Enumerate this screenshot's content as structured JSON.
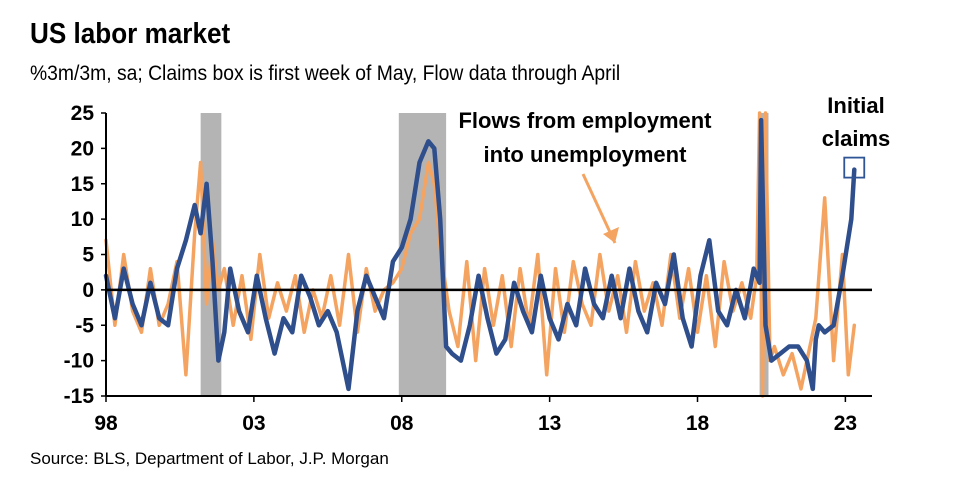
{
  "title": "US labor market",
  "subtitle": "%3m/3m, sa; Claims box is first week of May, Flow data through April",
  "source": "Source: BLS, Department of Labor, J.P. Morgan",
  "colors": {
    "claims": "#2F4E8C",
    "flows": "#F4A460",
    "recession": "#B4B4B4",
    "axis": "#000000",
    "box": "#2F5597"
  },
  "chart_data": {
    "type": "line",
    "title": "US labor market",
    "xlabel": "",
    "ylabel": "%3m/3m, sa",
    "xlim": [
      1998,
      2023.9
    ],
    "ylim": [
      -15,
      25
    ],
    "x_ticks": [
      1998,
      2003,
      2008,
      2013,
      2018,
      2023
    ],
    "x_tick_labels": [
      "98",
      "03",
      "08",
      "13",
      "18",
      "23"
    ],
    "y_ticks": [
      25,
      20,
      15,
      10,
      5,
      0,
      -5,
      -10,
      -15
    ],
    "y_tick_labels": [
      "25",
      "20",
      "15",
      "10",
      "5",
      "0",
      "-5",
      "-10",
      "-15"
    ],
    "recessions": [
      [
        2001.2,
        2001.9
      ],
      [
        2007.9,
        2009.5
      ],
      [
        2020.1,
        2020.4
      ]
    ],
    "annotations": {
      "flows_label_line1": "Flows from employment",
      "flows_label_line2": "into unemployment",
      "claims_label_line1": "Initial",
      "claims_label_line2": "claims"
    },
    "series": [
      {
        "name": "Initial claims",
        "x": [
          1998.0,
          1998.3,
          1998.6,
          1998.9,
          1999.2,
          1999.5,
          1999.8,
          2000.1,
          2000.4,
          2000.7,
          2001.0,
          2001.2,
          2001.4,
          2001.6,
          2001.8,
          2002.0,
          2002.2,
          2002.5,
          2002.8,
          2003.1,
          2003.4,
          2003.7,
          2004.0,
          2004.3,
          2004.6,
          2004.9,
          2005.2,
          2005.5,
          2005.8,
          2006.0,
          2006.2,
          2006.5,
          2006.8,
          2007.1,
          2007.4,
          2007.7,
          2008.0,
          2008.3,
          2008.6,
          2008.9,
          2009.1,
          2009.3,
          2009.5,
          2009.7,
          2010.0,
          2010.3,
          2010.6,
          2010.9,
          2011.2,
          2011.5,
          2011.8,
          2012.1,
          2012.4,
          2012.7,
          2013.0,
          2013.3,
          2013.6,
          2013.9,
          2014.2,
          2014.5,
          2014.8,
          2015.1,
          2015.4,
          2015.7,
          2016.0,
          2016.3,
          2016.6,
          2016.9,
          2017.2,
          2017.5,
          2017.8,
          2018.1,
          2018.4,
          2018.7,
          2019.0,
          2019.3,
          2019.6,
          2019.9,
          2020.1,
          2020.15,
          2020.3,
          2020.5,
          2020.8,
          2021.1,
          2021.4,
          2021.7,
          2021.9,
          2022.0,
          2022.1,
          2022.3,
          2022.6,
          2022.9,
          2023.2,
          2023.3
        ],
        "values": [
          2,
          -4,
          3,
          -2,
          -5,
          1,
          -4,
          -5,
          3,
          7,
          12,
          8,
          15,
          4,
          -10,
          -6,
          3,
          -3,
          -6,
          2,
          -4,
          -9,
          -4,
          -6,
          2,
          -1,
          -5,
          -3,
          -6,
          -10,
          -14,
          -3,
          2,
          -1,
          -4,
          4,
          6,
          10,
          18,
          21,
          20,
          10,
          -8,
          -9,
          -10,
          -5,
          2,
          -4,
          -9,
          -7,
          1,
          -3,
          -6,
          2,
          -4,
          -7,
          -2,
          -5,
          3,
          -2,
          -4,
          2,
          -4,
          3,
          -3,
          -6,
          1,
          -2,
          5,
          -4,
          -8,
          2,
          7,
          -3,
          -5,
          0,
          -4,
          3,
          1,
          24,
          -5,
          -10,
          -9,
          -8,
          -8,
          -10,
          -14,
          -7,
          -5,
          -6,
          -5,
          2,
          10,
          17
        ]
      },
      {
        "name": "Flows from employment into unemployment",
        "x": [
          1998.0,
          1998.3,
          1998.6,
          1998.9,
          1999.2,
          1999.5,
          1999.8,
          2000.1,
          2000.4,
          2000.7,
          2001.0,
          2001.2,
          2001.4,
          2001.6,
          2001.8,
          2002.0,
          2002.3,
          2002.6,
          2002.9,
          2003.2,
          2003.5,
          2003.8,
          2004.1,
          2004.4,
          2004.7,
          2005.0,
          2005.3,
          2005.6,
          2005.9,
          2006.2,
          2006.5,
          2006.8,
          2007.1,
          2007.4,
          2007.7,
          2008.0,
          2008.3,
          2008.6,
          2008.9,
          2009.1,
          2009.3,
          2009.6,
          2009.9,
          2010.2,
          2010.5,
          2010.8,
          2011.1,
          2011.4,
          2011.7,
          2012.0,
          2012.3,
          2012.6,
          2012.9,
          2013.2,
          2013.5,
          2013.8,
          2014.1,
          2014.4,
          2014.7,
          2015.0,
          2015.3,
          2015.6,
          2015.9,
          2016.2,
          2016.5,
          2016.8,
          2017.1,
          2017.4,
          2017.7,
          2018.0,
          2018.3,
          2018.6,
          2018.9,
          2019.2,
          2019.5,
          2019.8,
          2020.0,
          2020.1,
          2020.2,
          2020.3,
          2020.45,
          2020.6,
          2020.9,
          2021.2,
          2021.5,
          2021.8,
          2022.0,
          2022.3,
          2022.6,
          2022.9,
          2023.1,
          2023.3
        ],
        "values": [
          7,
          -5,
          5,
          -3,
          -6,
          3,
          -5,
          -2,
          4,
          -12,
          8,
          18,
          -2,
          7,
          0,
          3,
          -5,
          2,
          -7,
          5,
          -4,
          1,
          -3,
          2,
          -6,
          0,
          -4,
          2,
          -5,
          5,
          -6,
          3,
          -3,
          0,
          1,
          3,
          8,
          10,
          18,
          15,
          6,
          -3,
          -8,
          4,
          -10,
          3,
          -5,
          2,
          -8,
          3,
          -5,
          5,
          -12,
          3,
          -6,
          4,
          -2,
          -5,
          5,
          -3,
          2,
          -6,
          4,
          -3,
          1,
          -5,
          5,
          -4,
          3,
          -6,
          2,
          -8,
          4,
          -3,
          1,
          -4,
          2,
          25,
          -15,
          25,
          -10,
          -8,
          -12,
          -9,
          -14,
          -8,
          -4,
          13,
          -10,
          5,
          -12,
          -5
        ]
      }
    ]
  }
}
